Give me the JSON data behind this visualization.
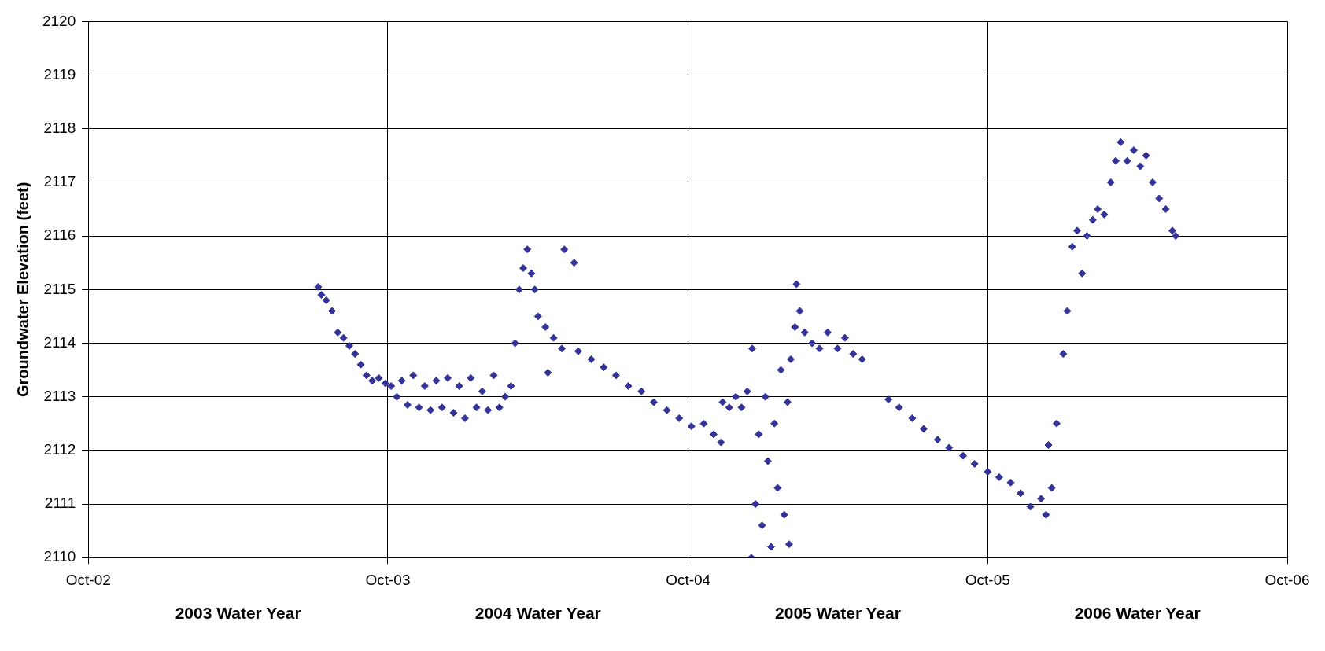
{
  "chart_data": {
    "type": "scatter",
    "ylabel": "Groundwater Elevation (feet)",
    "annotations": [
      "2003 Water Year",
      "2004 Water Year",
      "2005 Water Year",
      "2006 Water Year"
    ],
    "xlim": [
      "2002-10-01",
      "2006-10-01"
    ],
    "xticks": [
      {
        "value": "2002-10-01",
        "label": "Oct-02"
      },
      {
        "value": "2003-10-01",
        "label": "Oct-03"
      },
      {
        "value": "2004-10-01",
        "label": "Oct-04"
      },
      {
        "value": "2005-10-01",
        "label": "Oct-05"
      },
      {
        "value": "2006-10-01",
        "label": "Oct-06"
      }
    ],
    "ylim": [
      2110,
      2120
    ],
    "yticks": [
      2110,
      2111,
      2112,
      2113,
      2114,
      2115,
      2116,
      2117,
      2118,
      2119,
      2120
    ],
    "grid": true,
    "legend": false,
    "marker": "diamond",
    "series": [
      {
        "color": "#333399",
        "x": [
          "2003-07-08",
          "2003-07-12",
          "2003-07-18",
          "2003-07-25",
          "2003-08-01",
          "2003-08-08",
          "2003-08-15",
          "2003-08-22",
          "2003-08-29",
          "2003-09-05",
          "2003-09-12",
          "2003-09-20",
          "2003-09-28",
          "2003-10-05",
          "2003-10-12",
          "2003-10-18",
          "2003-10-25",
          "2003-11-01",
          "2003-11-08",
          "2003-11-15",
          "2003-11-22",
          "2003-11-29",
          "2003-12-06",
          "2003-12-13",
          "2003-12-20",
          "2003-12-27",
          "2004-01-03",
          "2004-01-10",
          "2004-01-17",
          "2004-01-24",
          "2004-01-31",
          "2004-02-07",
          "2004-02-14",
          "2004-02-21",
          "2004-02-28",
          "2004-03-04",
          "2004-03-09",
          "2004-03-14",
          "2004-03-19",
          "2004-03-24",
          "2004-03-28",
          "2004-04-01",
          "2004-04-10",
          "2004-04-13",
          "2004-04-20",
          "2004-04-30",
          "2004-05-03",
          "2004-05-15",
          "2004-05-20",
          "2004-06-05",
          "2004-06-20",
          "2004-07-05",
          "2004-07-20",
          "2004-08-05",
          "2004-08-20",
          "2004-09-05",
          "2004-09-20",
          "2004-10-05",
          "2004-10-20",
          "2004-11-01",
          "2004-11-10",
          "2004-11-12",
          "2004-11-20",
          "2004-11-28",
          "2004-12-05",
          "2004-12-12",
          "2004-12-17",
          "2004-12-18",
          "2004-12-22",
          "2004-12-26",
          "2004-12-30",
          "2005-01-03",
          "2005-01-06",
          "2005-01-10",
          "2005-01-14",
          "2005-01-18",
          "2005-01-22",
          "2005-01-26",
          "2005-01-30",
          "2005-02-01",
          "2005-02-03",
          "2005-02-08",
          "2005-02-10",
          "2005-02-14",
          "2005-02-20",
          "2005-03-01",
          "2005-03-10",
          "2005-03-20",
          "2005-04-01",
          "2005-04-10",
          "2005-04-20",
          "2005-05-01",
          "2005-06-02",
          "2005-06-15",
          "2005-07-01",
          "2005-07-15",
          "2005-08-01",
          "2005-08-15",
          "2005-09-01",
          "2005-09-15",
          "2005-10-01",
          "2005-10-15",
          "2005-10-29",
          "2005-11-10",
          "2005-11-22",
          "2005-12-05",
          "2005-12-11",
          "2005-12-14",
          "2005-12-18",
          "2005-12-24",
          "2006-01-01",
          "2006-01-06",
          "2006-01-12",
          "2006-01-18",
          "2006-01-24",
          "2006-01-30",
          "2006-02-06",
          "2006-02-12",
          "2006-02-20",
          "2006-02-28",
          "2006-03-06",
          "2006-03-12",
          "2006-03-20",
          "2006-03-28",
          "2006-04-05",
          "2006-04-12",
          "2006-04-20",
          "2006-04-28",
          "2006-05-06",
          "2006-05-14",
          "2006-05-18"
        ],
        "values": [
          2115.05,
          2114.9,
          2114.8,
          2114.6,
          2114.2,
          2114.1,
          2113.95,
          2113.8,
          2113.6,
          2113.4,
          2113.3,
          2113.35,
          2113.25,
          2113.2,
          2113.0,
          2113.3,
          2112.85,
          2113.4,
          2112.8,
          2113.2,
          2112.75,
          2113.3,
          2112.8,
          2113.35,
          2112.7,
          2113.2,
          2112.6,
          2113.35,
          2112.8,
          2113.1,
          2112.75,
          2113.4,
          2112.8,
          2113.0,
          2113.2,
          2114.0,
          2115.0,
          2115.4,
          2115.75,
          2115.3,
          2115.0,
          2114.5,
          2114.3,
          2113.45,
          2114.1,
          2113.9,
          2115.75,
          2115.5,
          2113.85,
          2113.7,
          2113.55,
          2113.4,
          2113.2,
          2113.1,
          2112.9,
          2112.75,
          2112.6,
          2112.45,
          2112.5,
          2112.3,
          2112.15,
          2112.9,
          2112.8,
          2113.0,
          2112.8,
          2113.1,
          2110.0,
          2113.9,
          2111.0,
          2112.3,
          2110.6,
          2113.0,
          2111.8,
          2110.2,
          2112.5,
          2111.3,
          2113.5,
          2110.8,
          2112.9,
          2110.25,
          2113.7,
          2114.3,
          2115.1,
          2114.6,
          2114.2,
          2114.0,
          2113.9,
          2114.2,
          2113.9,
          2114.1,
          2113.8,
          2113.7,
          2112.95,
          2112.8,
          2112.6,
          2112.4,
          2112.2,
          2112.05,
          2111.9,
          2111.75,
          2111.6,
          2111.5,
          2111.4,
          2111.2,
          2110.95,
          2111.1,
          2110.8,
          2112.1,
          2111.3,
          2112.5,
          2113.8,
          2114.6,
          2115.8,
          2116.1,
          2115.3,
          2116.0,
          2116.3,
          2116.5,
          2116.4,
          2117.0,
          2117.4,
          2117.75,
          2117.4,
          2117.6,
          2117.3,
          2117.5,
          2117.0,
          2116.7,
          2116.5,
          2116.1,
          2116.0
        ]
      }
    ]
  }
}
